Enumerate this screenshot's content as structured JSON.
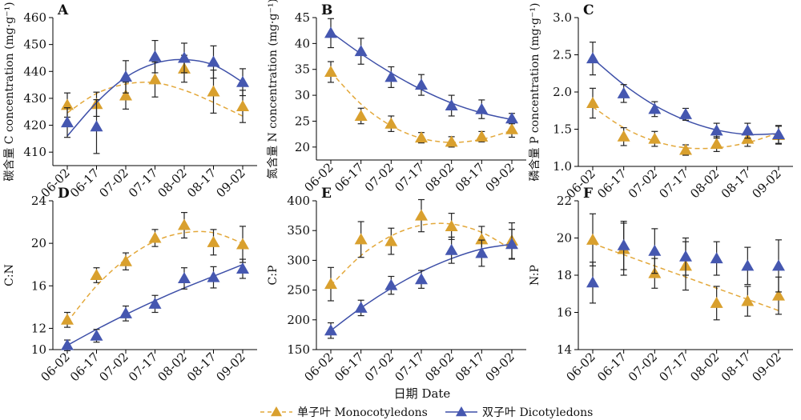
{
  "chart_data": [
    {
      "panel": "A",
      "type": "scatter",
      "ylabel": "碳含量 C concentration (mg·g⁻¹)",
      "ylim": [
        405,
        460
      ],
      "yticks": [
        410,
        420,
        430,
        440,
        450,
        460
      ],
      "categories": [
        "06-02",
        "06-17",
        "07-02",
        "07-17",
        "08-02",
        "08-17",
        "09-02"
      ],
      "series": [
        {
          "name": "单子叶 Monocotyledons",
          "values": [
            427.5,
            427.8,
            431.0,
            437.0,
            441.0,
            432.5,
            427.0
          ],
          "errors": [
            4.5,
            4.5,
            5.0,
            6.5,
            5.0,
            8.0,
            6.0
          ],
          "fit": [
            424.6,
            431.8,
            435.3,
            435.8,
            433.0,
            428.5,
            423.4
          ]
        },
        {
          "name": "双子叶 Dicotyledons",
          "values": [
            421.0,
            419.5,
            438.0,
            445.5,
            445.0,
            443.5,
            436.0
          ],
          "errors": [
            5.5,
            10.0,
            6.0,
            6.0,
            5.5,
            6.0,
            5.0
          ],
          "fit": [
            416.0,
            428.4,
            437.8,
            443.0,
            444.4,
            442.4,
            436.0
          ]
        }
      ]
    },
    {
      "panel": "B",
      "type": "scatter",
      "ylabel": "氮含量 N concentration (mg·g⁻¹)",
      "ylim": [
        17.5,
        45
      ],
      "yticks": [
        20,
        25,
        30,
        35,
        40,
        45
      ],
      "categories": [
        "06-02",
        "06-17",
        "07-02",
        "07-17",
        "08-02",
        "08-17",
        "09-02"
      ],
      "series": [
        {
          "name": "单子叶 Monocotyledons",
          "values": [
            34.5,
            26.0,
            24.5,
            21.8,
            21.0,
            22.0,
            23.4
          ],
          "errors": [
            2.0,
            1.5,
            1.5,
            1.0,
            1.0,
            1.0,
            1.5
          ],
          "fit": [
            34.5,
            28.3,
            24.1,
            21.7,
            20.9,
            21.5,
            23.2
          ]
        },
        {
          "name": "双子叶 Dicotyledons",
          "values": [
            42.0,
            38.5,
            33.5,
            32.0,
            28.0,
            27.3,
            25.5
          ],
          "errors": [
            2.8,
            2.5,
            2.0,
            2.0,
            2.0,
            1.8,
            1.0
          ],
          "fit": [
            42.2,
            38.0,
            34.3,
            31.1,
            28.5,
            26.6,
            25.3
          ]
        }
      ]
    },
    {
      "panel": "C",
      "type": "scatter",
      "ylabel": "磷含量 P concentration (mg·g⁻¹)",
      "ylim": [
        1.0,
        3.0
      ],
      "yticks": [
        1.0,
        1.5,
        2.0,
        2.5,
        3.0
      ],
      "categories": [
        "06-02",
        "06-17",
        "07-02",
        "07-17",
        "08-02",
        "08-17",
        "09-02"
      ],
      "series": [
        {
          "name": "单子叶 Monocotyledons",
          "values": [
            1.85,
            1.4,
            1.37,
            1.22,
            1.3,
            1.37,
            1.42
          ],
          "errors": [
            0.2,
            0.12,
            0.1,
            0.07,
            0.1,
            0.1,
            0.12
          ],
          "fit": [
            1.8,
            1.52,
            1.34,
            1.25,
            1.25,
            1.32,
            1.45
          ]
        },
        {
          "name": "双子叶 Dicotyledons",
          "values": [
            2.45,
            1.98,
            1.77,
            1.7,
            1.48,
            1.48,
            1.43
          ],
          "errors": [
            0.22,
            0.12,
            0.1,
            0.08,
            0.1,
            0.1,
            0.12
          ],
          "fit": [
            2.45,
            2.1,
            1.82,
            1.62,
            1.49,
            1.43,
            1.44
          ]
        }
      ]
    },
    {
      "panel": "D",
      "type": "scatter",
      "ylabel": "C:N",
      "ylim": [
        10,
        24
      ],
      "yticks": [
        12,
        16,
        20,
        24
      ],
      "ytick_first_label": "10",
      "categories": [
        "06-02",
        "06-17",
        "07-02",
        "07-17",
        "08-02",
        "08-17",
        "09-02"
      ],
      "series": [
        {
          "name": "单子叶 Monocotyledons",
          "values": [
            12.8,
            17.0,
            18.3,
            20.5,
            21.7,
            20.1,
            19.9
          ],
          "errors": [
            0.7,
            0.7,
            0.8,
            0.8,
            1.2,
            1.2,
            1.7
          ],
          "fit": [
            12.6,
            16.0,
            18.5,
            20.2,
            21.0,
            21.0,
            20.0
          ]
        },
        {
          "name": "双子叶 Dicotyledons",
          "values": [
            10.4,
            11.3,
            13.4,
            14.3,
            16.7,
            16.8,
            17.6
          ],
          "errors": [
            0.5,
            0.6,
            0.7,
            0.8,
            1.0,
            1.0,
            0.9
          ],
          "fit": [
            10.4,
            11.9,
            13.3,
            14.6,
            15.8,
            16.9,
            18.0
          ]
        }
      ]
    },
    {
      "panel": "E",
      "type": "scatter",
      "ylabel": "C:P",
      "ylim": [
        150,
        400
      ],
      "yticks": [
        150,
        200,
        250,
        300,
        350,
        400
      ],
      "categories": [
        "06-02",
        "06-17",
        "07-02",
        "07-17",
        "08-02",
        "08-17",
        "09-02"
      ],
      "series": [
        {
          "name": "单子叶 Monocotyledons",
          "values": [
            260,
            335,
            332,
            375,
            357,
            335,
            333
          ],
          "errors": [
            28,
            30,
            22,
            27,
            22,
            22,
            30
          ],
          "fit": [
            258,
            308,
            341,
            359,
            361,
            347,
            318
          ]
        },
        {
          "name": "双子叶 Dicotyledons",
          "values": [
            182,
            220,
            258,
            268,
            317,
            312,
            327
          ],
          "errors": [
            13,
            13,
            15,
            15,
            22,
            22,
            25
          ],
          "fit": [
            182,
            220,
            253,
            281,
            303,
            319,
            327
          ]
        }
      ]
    },
    {
      "panel": "F",
      "type": "scatter",
      "ylabel": "N:P",
      "ylim": [
        14,
        22
      ],
      "yticks": [
        14,
        16,
        18,
        20,
        22
      ],
      "categories": [
        "06-02",
        "06-17",
        "07-02",
        "07-17",
        "08-02",
        "08-17",
        "09-02"
      ],
      "series": [
        {
          "name": "单子叶 Monocotyledons",
          "values": [
            19.9,
            19.4,
            18.1,
            18.5,
            16.5,
            16.6,
            16.9
          ],
          "errors": [
            1.4,
            1.4,
            0.8,
            1.3,
            0.9,
            0.8,
            1.0
          ],
          "fit": [
            19.7,
            19.1,
            18.5,
            17.9,
            17.3,
            16.7,
            16.1
          ]
        },
        {
          "name": "双子叶 Dicotyledons",
          "values": [
            17.6,
            19.6,
            19.3,
            19.0,
            18.9,
            18.5,
            18.5
          ],
          "errors": [
            1.1,
            1.3,
            1.2,
            1.0,
            0.9,
            1.0,
            1.4
          ],
          "fit": null
        }
      ]
    }
  ],
  "xlabel": "日期 Date",
  "legend": [
    {
      "label": "单子叶 Monocotyledons",
      "color": "#E3A83A"
    },
    {
      "label": "双子叶 Dicotyledons",
      "color": "#4557B0"
    }
  ],
  "colors": {
    "mono_marker": "#D9A02E",
    "mono_line": "#E3A83A",
    "dico_marker": "#4557B0",
    "dico_line": "#3D4FA8"
  }
}
